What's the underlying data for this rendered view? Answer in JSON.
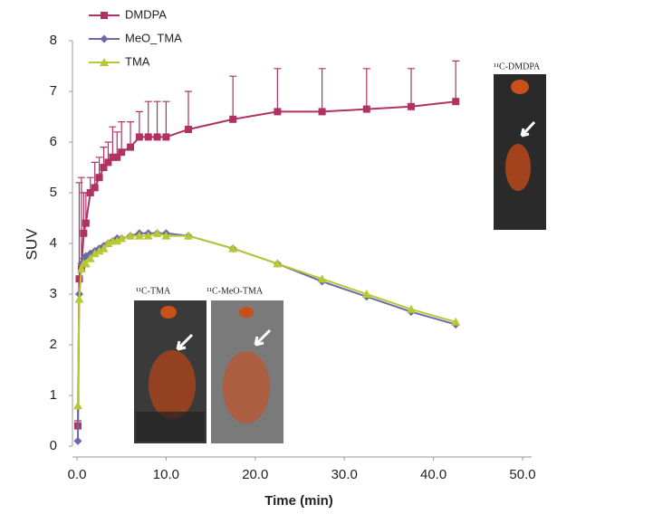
{
  "chart_data": {
    "type": "line",
    "xlabel": "Time (min)",
    "ylabel": "SUV",
    "x": [
      0.1,
      0.25,
      0.5,
      0.75,
      1,
      1.5,
      2,
      2.5,
      3,
      3.5,
      4,
      4.5,
      5,
      6,
      7,
      8,
      9,
      10,
      12.5,
      17.5,
      22.5,
      27.5,
      32.5,
      37.5,
      42.5
    ],
    "series": [
      {
        "name": "DMDPA",
        "color": "#b03262",
        "marker": "square",
        "values": [
          0.4,
          3.3,
          3.5,
          4.2,
          4.4,
          5.0,
          5.1,
          5.3,
          5.5,
          5.6,
          5.7,
          5.7,
          5.8,
          5.9,
          6.1,
          6.1,
          6.1,
          6.1,
          6.25,
          6.45,
          6.6,
          6.6,
          6.65,
          6.7,
          6.8
        ],
        "errors": [
          0.1,
          1.9,
          1.8,
          0.8,
          0.6,
          0.3,
          0.5,
          0.4,
          0.4,
          0.4,
          0.6,
          0.5,
          0.6,
          0.5,
          0.5,
          0.7,
          0.7,
          0.7,
          0.75,
          0.85,
          0.85,
          0.85,
          0.8,
          0.75,
          0.8
        ]
      },
      {
        "name": "MeO_TMA",
        "color": "#6a6aa8",
        "marker": "diamond",
        "values": [
          0.1,
          3.0,
          3.6,
          3.7,
          3.75,
          3.8,
          3.85,
          3.9,
          3.95,
          4.0,
          4.05,
          4.1,
          4.1,
          4.15,
          4.2,
          4.2,
          4.2,
          4.2,
          4.15,
          3.9,
          3.6,
          3.25,
          2.95,
          2.65,
          2.4
        ]
      },
      {
        "name": "TMA",
        "color": "#b8c832",
        "marker": "triangle",
        "values": [
          0.8,
          2.9,
          3.5,
          3.6,
          3.6,
          3.7,
          3.8,
          3.85,
          3.9,
          4.0,
          4.05,
          4.05,
          4.1,
          4.15,
          4.15,
          4.15,
          4.2,
          4.15,
          4.15,
          3.9,
          3.6,
          3.3,
          3.0,
          2.7,
          2.45
        ]
      }
    ],
    "xlim": [
      0,
      50
    ],
    "xticks": [
      {
        "value": 0,
        "label": "0.0"
      },
      {
        "value": 10,
        "label": "10.0"
      },
      {
        "value": 20,
        "label": "20.0"
      },
      {
        "value": 30,
        "label": "30.0"
      },
      {
        "value": 40,
        "label": "40.0"
      },
      {
        "value": 50,
        "label": "50.0"
      }
    ],
    "ylim": [
      0,
      8
    ],
    "yticks": [
      0,
      1,
      2,
      3,
      4,
      5,
      6,
      7,
      8
    ],
    "grid": false,
    "legend": "top-left",
    "insets": [
      "¹¹C-DMDPA",
      "¹¹C-TMA",
      "¹¹C-MeO-TMA"
    ]
  }
}
